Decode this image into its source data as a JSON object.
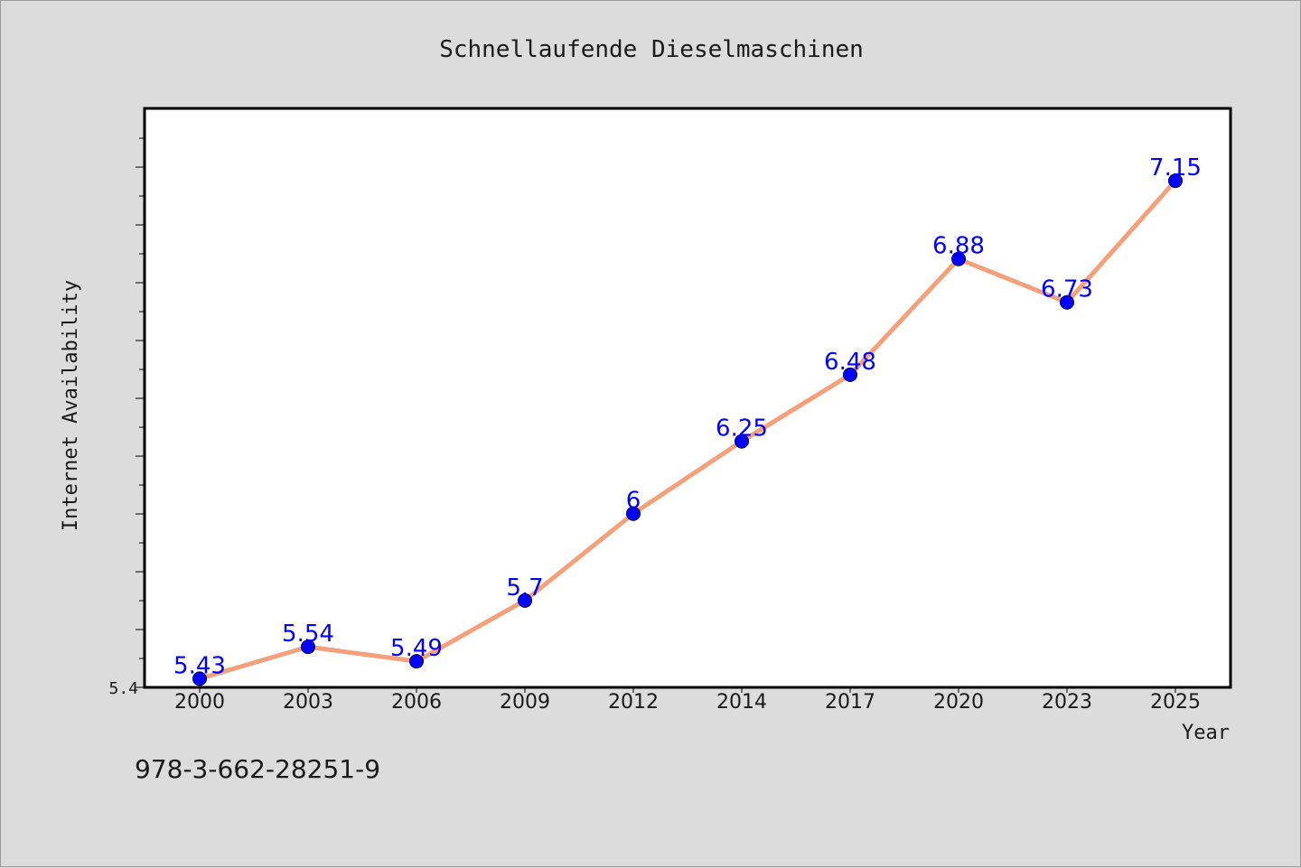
{
  "chart_data": {
    "type": "line",
    "title": "Schnellaufende Dieselmaschinen",
    "xlabel": "Year",
    "ylabel": "Internet Availability",
    "categories": [
      "2000",
      "2003",
      "2006",
      "2009",
      "2012",
      "2014",
      "2017",
      "2020",
      "2023",
      "2025"
    ],
    "series": [
      {
        "values": [
          5.43,
          5.54,
          5.49,
          5.7,
          6,
          6.25,
          6.48,
          6.88,
          6.73,
          7.15
        ],
        "labels": [
          "5.43",
          "5.54",
          "5.49",
          "5.7",
          "6",
          "6.25",
          "6.48",
          "6.88",
          "6.73",
          "7.15"
        ],
        "line_color": "#f4a07a",
        "marker_color": "#0000ff"
      }
    ],
    "ylim": [
      5.4,
      7.4
    ],
    "y_tick_label": "5.4",
    "grid": false,
    "legend": false,
    "background": "#dcdcdc",
    "plot_background": "#ffffff"
  },
  "footer": {
    "isbn": "978-3-662-28251-9"
  }
}
